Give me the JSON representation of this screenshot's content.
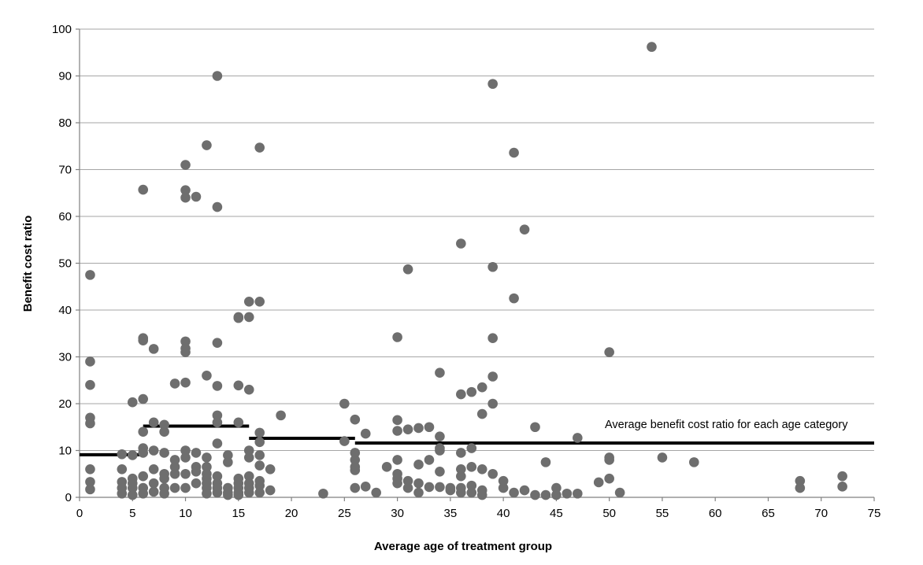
{
  "chart_data": {
    "type": "scatter",
    "title": "",
    "xlabel": "Average age of treatment group",
    "ylabel": "Benefit cost ratio",
    "xlim": [
      0,
      75
    ],
    "ylim": [
      0,
      100
    ],
    "x_ticks": [
      0,
      5,
      10,
      15,
      20,
      25,
      30,
      35,
      40,
      45,
      50,
      55,
      60,
      65,
      70,
      75
    ],
    "y_ticks": [
      0,
      10,
      20,
      30,
      40,
      50,
      60,
      70,
      80,
      90,
      100
    ],
    "grid": "horizontal",
    "marker_color": "#6e6e6e",
    "line_color": "#000000",
    "annotation": "Average benefit cost ratio for each age category",
    "points": [
      [
        1,
        47.5
      ],
      [
        1,
        29
      ],
      [
        1,
        24
      ],
      [
        1,
        17
      ],
      [
        1,
        15.8
      ],
      [
        1,
        6
      ],
      [
        1,
        3.3
      ],
      [
        1,
        1.7
      ],
      [
        4,
        9.2
      ],
      [
        4,
        6
      ],
      [
        4,
        3.3
      ],
      [
        4,
        2
      ],
      [
        4,
        0.8
      ],
      [
        5,
        9
      ],
      [
        5,
        4
      ],
      [
        5,
        3
      ],
      [
        5,
        2
      ],
      [
        5,
        0.5
      ],
      [
        5,
        20.3
      ],
      [
        6,
        65.7
      ],
      [
        6,
        34
      ],
      [
        6,
        33.5
      ],
      [
        6,
        21
      ],
      [
        6,
        14
      ],
      [
        6,
        10.5
      ],
      [
        6,
        9.5
      ],
      [
        6,
        4.5
      ],
      [
        6,
        2
      ],
      [
        6,
        0.8
      ],
      [
        7,
        31.7
      ],
      [
        7,
        16
      ],
      [
        7,
        10
      ],
      [
        7,
        6
      ],
      [
        7,
        3
      ],
      [
        7,
        1.2
      ],
      [
        8,
        15.5
      ],
      [
        8,
        14
      ],
      [
        8,
        9.5
      ],
      [
        8,
        5
      ],
      [
        8,
        4
      ],
      [
        8,
        2
      ],
      [
        8,
        0.8
      ],
      [
        9,
        24.3
      ],
      [
        9,
        8
      ],
      [
        9,
        6.5
      ],
      [
        9,
        5
      ],
      [
        9,
        2
      ],
      [
        10,
        71
      ],
      [
        10,
        65.6
      ],
      [
        10,
        64
      ],
      [
        10,
        33.3
      ],
      [
        10,
        31.8
      ],
      [
        10,
        31
      ],
      [
        10,
        24.5
      ],
      [
        10,
        10
      ],
      [
        10,
        8.5
      ],
      [
        10,
        5
      ],
      [
        10,
        2
      ],
      [
        11,
        64.2
      ],
      [
        11,
        9.5
      ],
      [
        11,
        6.5
      ],
      [
        11,
        5.5
      ],
      [
        11,
        3
      ],
      [
        12,
        75.2
      ],
      [
        12,
        26
      ],
      [
        12,
        8.5
      ],
      [
        12,
        6.5
      ],
      [
        12,
        5
      ],
      [
        12,
        4
      ],
      [
        12,
        3
      ],
      [
        12,
        2
      ],
      [
        12,
        0.8
      ],
      [
        13,
        90
      ],
      [
        13,
        62
      ],
      [
        13,
        33
      ],
      [
        13,
        23.8
      ],
      [
        13,
        17.5
      ],
      [
        13,
        16
      ],
      [
        13,
        11.5
      ],
      [
        13,
        4.5
      ],
      [
        13,
        3
      ],
      [
        13,
        2
      ],
      [
        13,
        1
      ],
      [
        14,
        9
      ],
      [
        14,
        7.5
      ],
      [
        14,
        2
      ],
      [
        14,
        1
      ],
      [
        14,
        0.5
      ],
      [
        15,
        38.5
      ],
      [
        15,
        38.3
      ],
      [
        15,
        23.9
      ],
      [
        15,
        16
      ],
      [
        15,
        4
      ],
      [
        15,
        3
      ],
      [
        15,
        2
      ],
      [
        15,
        1
      ],
      [
        15,
        0.5
      ],
      [
        16,
        41.8
      ],
      [
        16,
        38.5
      ],
      [
        16,
        23
      ],
      [
        16,
        10
      ],
      [
        16,
        8.5
      ],
      [
        16,
        4.5
      ],
      [
        16,
        3
      ],
      [
        16,
        2
      ],
      [
        16,
        1
      ],
      [
        17,
        74.7
      ],
      [
        17,
        41.8
      ],
      [
        17,
        13.8
      ],
      [
        17,
        11.8
      ],
      [
        17,
        9
      ],
      [
        17,
        6.8
      ],
      [
        17,
        3.5
      ],
      [
        17,
        2.5
      ],
      [
        17,
        1
      ],
      [
        18,
        6
      ],
      [
        18,
        1.5
      ],
      [
        19,
        17.5
      ],
      [
        23,
        0.8
      ],
      [
        25,
        20
      ],
      [
        25,
        12
      ],
      [
        26,
        16.6
      ],
      [
        26,
        9.5
      ],
      [
        26,
        8
      ],
      [
        26,
        6.5
      ],
      [
        26,
        5.8
      ],
      [
        26,
        2
      ],
      [
        27,
        13.6
      ],
      [
        27,
        2.3
      ],
      [
        28,
        1
      ],
      [
        29,
        6.5
      ],
      [
        30,
        34.2
      ],
      [
        30,
        16.5
      ],
      [
        30,
        14.2
      ],
      [
        30,
        8
      ],
      [
        30,
        5
      ],
      [
        30,
        4
      ],
      [
        30,
        3
      ],
      [
        31,
        48.7
      ],
      [
        31,
        14.5
      ],
      [
        31,
        3.5
      ],
      [
        31,
        2
      ],
      [
        32,
        14.8
      ],
      [
        32,
        7
      ],
      [
        32,
        3
      ],
      [
        32,
        1
      ],
      [
        33,
        15
      ],
      [
        33,
        8
      ],
      [
        33,
        2.2
      ],
      [
        34,
        26.6
      ],
      [
        34,
        13
      ],
      [
        34,
        10.5
      ],
      [
        34,
        10
      ],
      [
        34,
        5.5
      ],
      [
        34,
        2.2
      ],
      [
        35,
        2
      ],
      [
        35,
        1.5
      ],
      [
        36,
        54.2
      ],
      [
        36,
        22
      ],
      [
        36,
        9.5
      ],
      [
        36,
        6
      ],
      [
        36,
        4.5
      ],
      [
        36,
        2
      ],
      [
        36,
        1
      ],
      [
        37,
        22.5
      ],
      [
        37,
        10.5
      ],
      [
        37,
        6.5
      ],
      [
        37,
        2.5
      ],
      [
        37,
        1
      ],
      [
        38,
        23.5
      ],
      [
        38,
        17.8
      ],
      [
        38,
        6
      ],
      [
        38,
        1.5
      ],
      [
        38,
        0.5
      ],
      [
        39,
        88.3
      ],
      [
        39,
        49.2
      ],
      [
        39,
        34
      ],
      [
        39,
        25.8
      ],
      [
        39,
        20
      ],
      [
        39,
        5
      ],
      [
        40,
        3.5
      ],
      [
        40,
        2
      ],
      [
        41,
        73.6
      ],
      [
        41,
        42.5
      ],
      [
        41,
        1
      ],
      [
        42,
        57.2
      ],
      [
        42,
        1.5
      ],
      [
        43,
        15
      ],
      [
        43,
        0.5
      ],
      [
        44,
        7.5
      ],
      [
        44,
        0.5
      ],
      [
        45,
        2
      ],
      [
        45,
        0.5
      ],
      [
        46,
        0.8
      ],
      [
        47,
        12.7
      ],
      [
        47,
        0.8
      ],
      [
        49,
        3.2
      ],
      [
        50,
        31
      ],
      [
        50,
        8.5
      ],
      [
        50,
        8
      ],
      [
        50,
        4
      ],
      [
        51,
        1
      ],
      [
        54,
        96.2
      ],
      [
        55,
        8.5
      ],
      [
        58,
        7.5
      ],
      [
        68,
        3.5
      ],
      [
        68,
        2
      ],
      [
        72,
        4.5
      ],
      [
        72,
        2.3
      ]
    ],
    "average_segments": [
      {
        "x": [
          0,
          6
        ],
        "y": 9.1
      },
      {
        "x": [
          6,
          16
        ],
        "y": 15.2
      },
      {
        "x": [
          16,
          26
        ],
        "y": 12.6
      },
      {
        "x": [
          26,
          75
        ],
        "y": 11.6
      }
    ]
  }
}
